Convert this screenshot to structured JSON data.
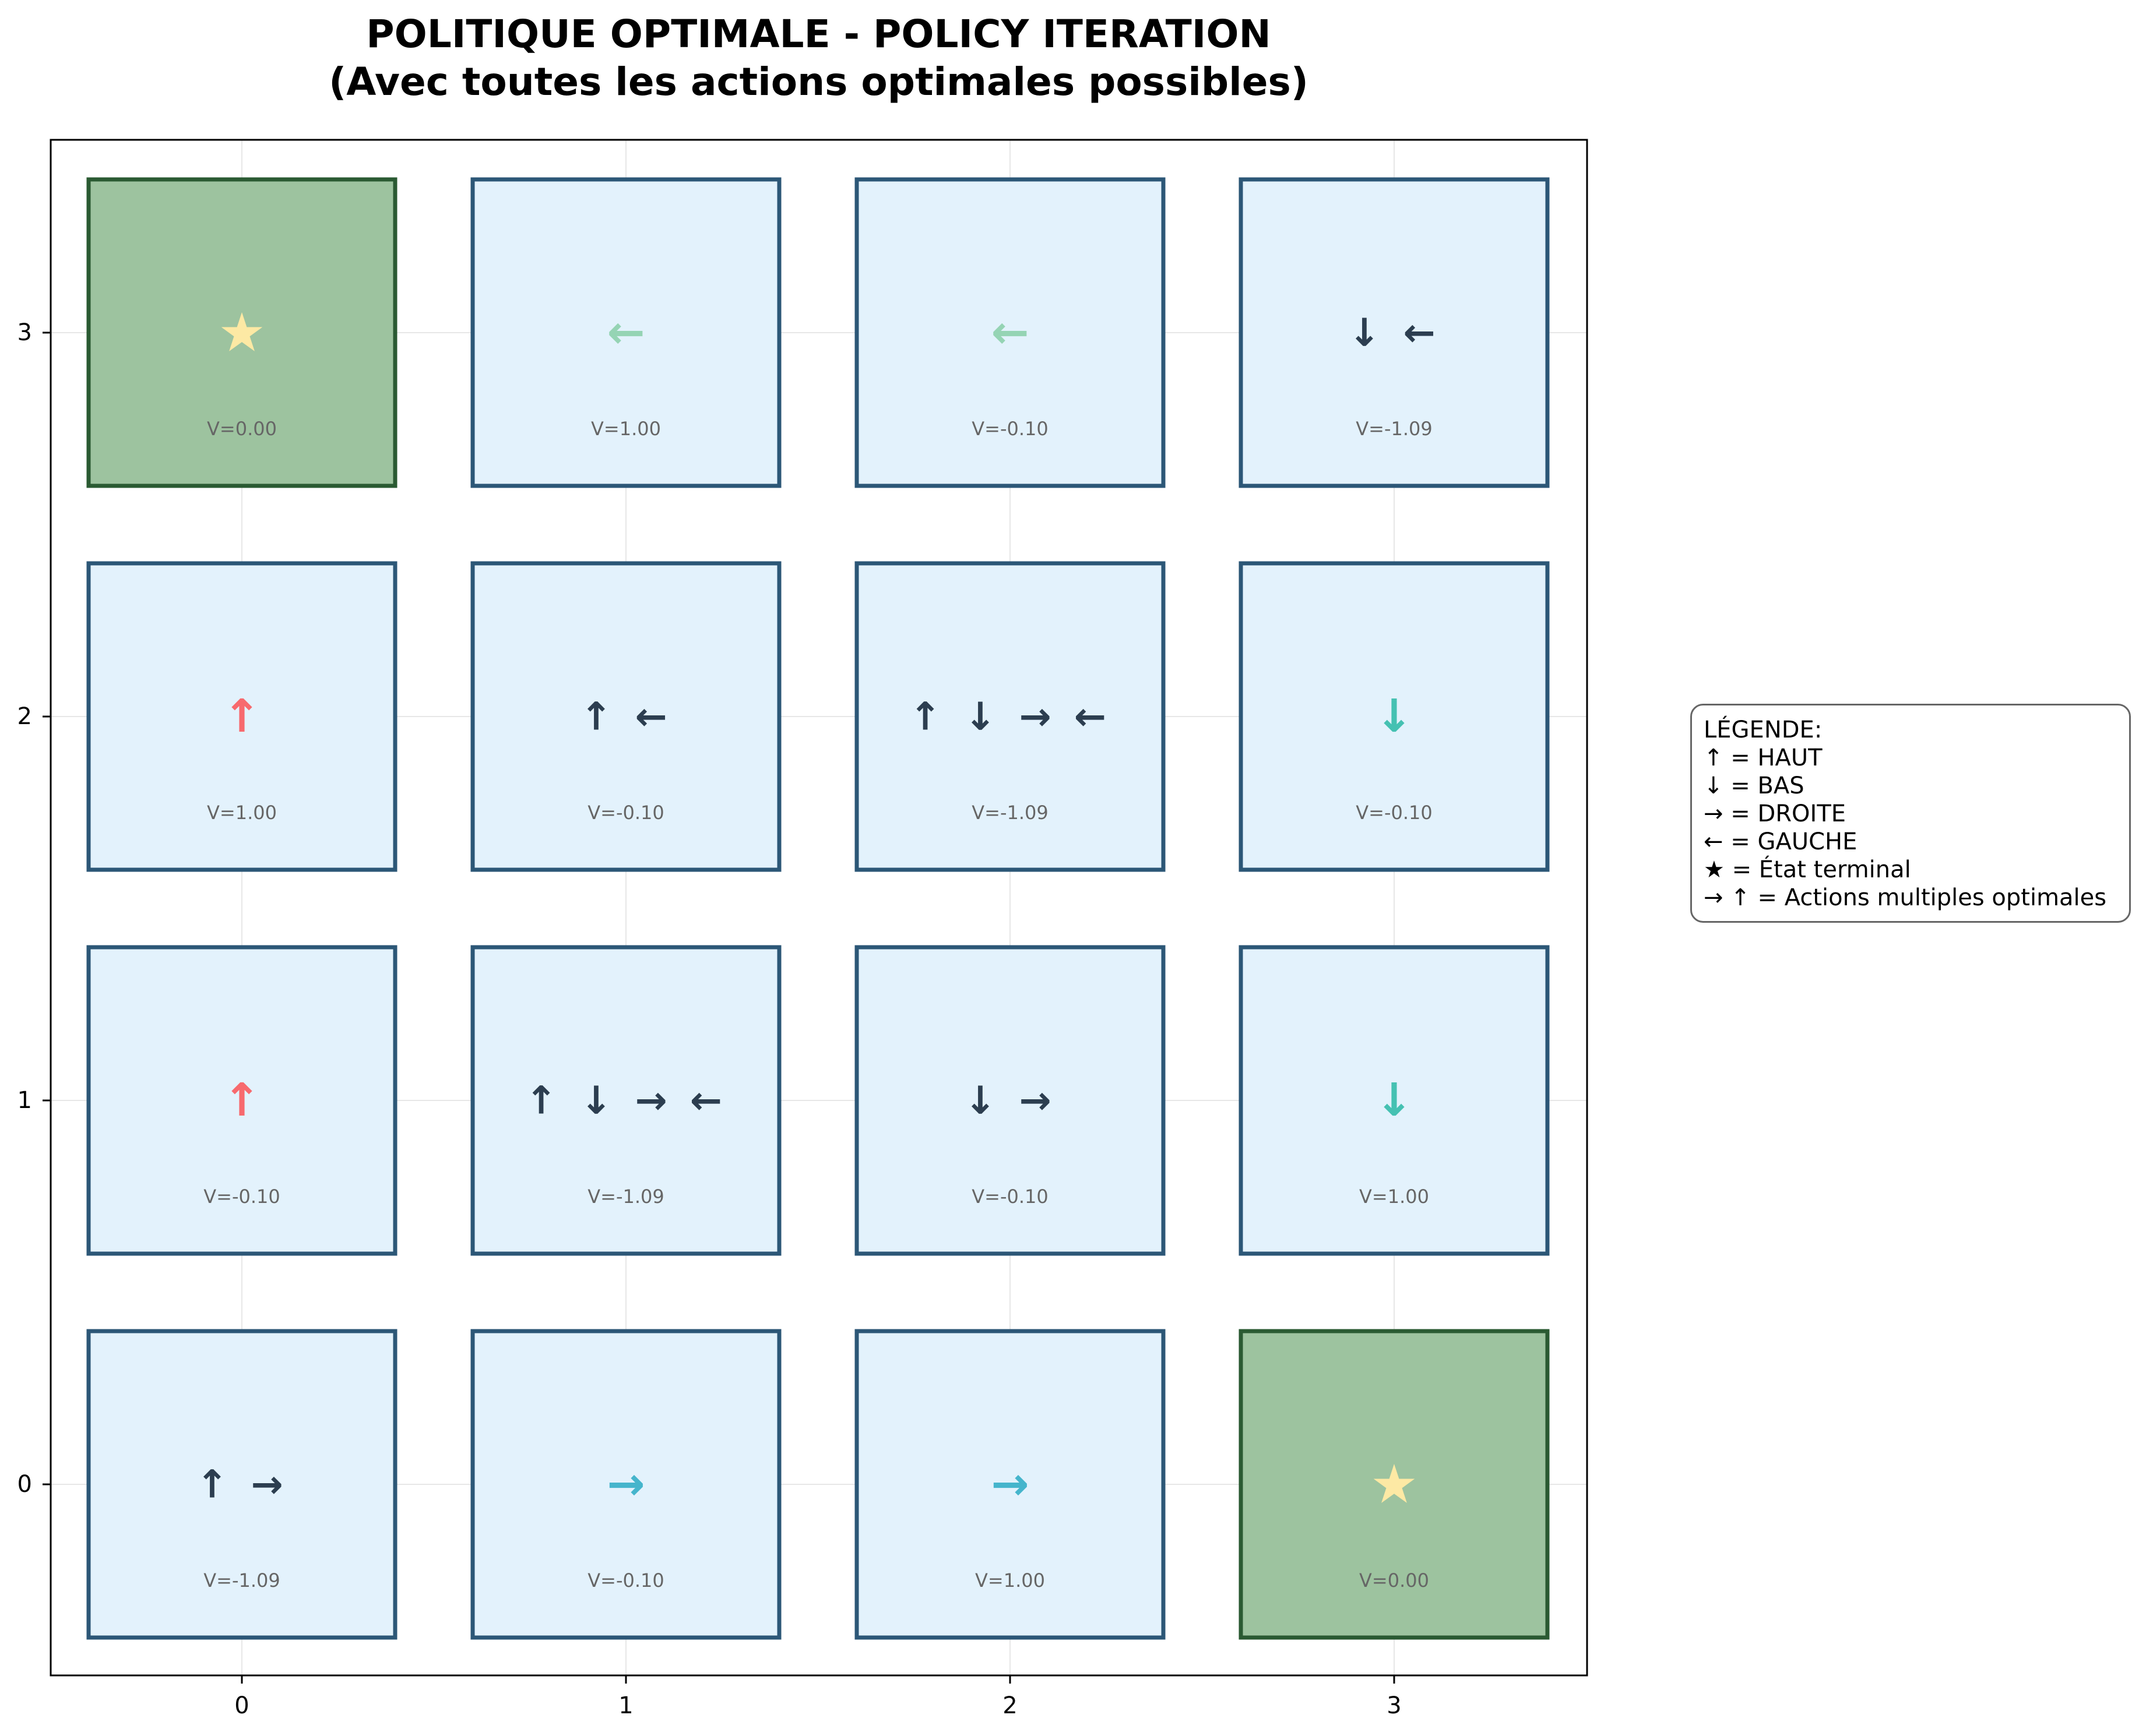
{
  "title": {
    "line1": "POLITIQUE OPTIMALE - POLICY ITERATION",
    "line2": "(Avec toutes les actions optimales possibles)"
  },
  "axes": {
    "x_ticks": [
      "0",
      "1",
      "2",
      "3"
    ],
    "y_ticks": [
      "0",
      "1",
      "2",
      "3"
    ],
    "grid": true
  },
  "colors": {
    "cell_fill": "#e3f2fc",
    "cell_border": "#2c5777",
    "terminal_fill": "#9dc39f",
    "terminal_border": "#2a5a32",
    "star": "#fde9a4",
    "up": "#f76a6e",
    "down": "#45c1b2",
    "right": "#45b5cc",
    "left": "#95d4b4",
    "multi": "#2c3e50",
    "value_text": "#666666"
  },
  "cells": [
    {
      "col": 0,
      "row": 3,
      "terminal": true,
      "arrows": "★",
      "arrow_color": "star",
      "value": "V=0.00"
    },
    {
      "col": 1,
      "row": 3,
      "terminal": false,
      "arrows": "←",
      "arrow_color": "left",
      "value": "V=1.00"
    },
    {
      "col": 2,
      "row": 3,
      "terminal": false,
      "arrows": "←",
      "arrow_color": "left",
      "value": "V=-0.10"
    },
    {
      "col": 3,
      "row": 3,
      "terminal": false,
      "arrows": "↓ ←",
      "arrow_color": "multi",
      "value": "V=-1.09"
    },
    {
      "col": 0,
      "row": 2,
      "terminal": false,
      "arrows": "↑",
      "arrow_color": "up",
      "value": "V=1.00"
    },
    {
      "col": 1,
      "row": 2,
      "terminal": false,
      "arrows": "↑ ←",
      "arrow_color": "multi",
      "value": "V=-0.10"
    },
    {
      "col": 2,
      "row": 2,
      "terminal": false,
      "arrows": "↑ ↓ → ←",
      "arrow_color": "multi",
      "value": "V=-1.09"
    },
    {
      "col": 3,
      "row": 2,
      "terminal": false,
      "arrows": "↓",
      "arrow_color": "down",
      "value": "V=-0.10"
    },
    {
      "col": 0,
      "row": 1,
      "terminal": false,
      "arrows": "↑",
      "arrow_color": "up",
      "value": "V=-0.10"
    },
    {
      "col": 1,
      "row": 1,
      "terminal": false,
      "arrows": "↑ ↓ → ←",
      "arrow_color": "multi",
      "value": "V=-1.09"
    },
    {
      "col": 2,
      "row": 1,
      "terminal": false,
      "arrows": "↓ →",
      "arrow_color": "multi",
      "value": "V=-0.10"
    },
    {
      "col": 3,
      "row": 1,
      "terminal": false,
      "arrows": "↓",
      "arrow_color": "down",
      "value": "V=1.00"
    },
    {
      "col": 0,
      "row": 0,
      "terminal": false,
      "arrows": "↑ →",
      "arrow_color": "multi",
      "value": "V=-1.09"
    },
    {
      "col": 1,
      "row": 0,
      "terminal": false,
      "arrows": "→",
      "arrow_color": "right",
      "value": "V=-0.10"
    },
    {
      "col": 2,
      "row": 0,
      "terminal": false,
      "arrows": "→",
      "arrow_color": "right",
      "value": "V=1.00"
    },
    {
      "col": 3,
      "row": 0,
      "terminal": true,
      "arrows": "★",
      "arrow_color": "star",
      "value": "V=0.00"
    }
  ],
  "legend": {
    "heading": "LÉGENDE:",
    "lines": [
      "↑ = HAUT",
      "↓ = BAS",
      "→ = DROITE",
      "← = GAUCHE",
      "★ = État terminal",
      "→ ↑ = Actions multiples optimales"
    ]
  }
}
